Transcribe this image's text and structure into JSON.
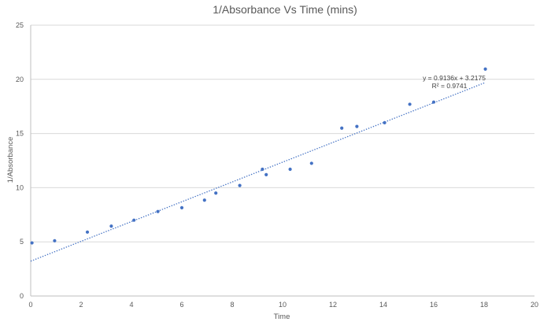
{
  "chart_data": {
    "type": "scatter",
    "title": "1/Absorbance Vs Time (mins)",
    "xlabel": "Time",
    "ylabel": "1/Absorbance",
    "xlim": [
      0,
      20
    ],
    "ylim": [
      0,
      25
    ],
    "xticks": [
      0,
      2,
      4,
      6,
      8,
      10,
      12,
      14,
      16,
      18,
      20
    ],
    "yticks": [
      0,
      5,
      10,
      15,
      20,
      25
    ],
    "grid": "horizontal",
    "legend": "none",
    "series": [
      {
        "color": "#4472c4",
        "points": [
          {
            "x": 0.05,
            "y": 4.9
          },
          {
            "x": 0.95,
            "y": 5.1
          },
          {
            "x": 2.25,
            "y": 5.9
          },
          {
            "x": 3.2,
            "y": 6.45
          },
          {
            "x": 4.1,
            "y": 7.0
          },
          {
            "x": 5.05,
            "y": 7.8
          },
          {
            "x": 6.0,
            "y": 8.15
          },
          {
            "x": 6.9,
            "y": 8.85
          },
          {
            "x": 7.35,
            "y": 9.5
          },
          {
            "x": 8.3,
            "y": 10.2
          },
          {
            "x": 9.2,
            "y": 11.7
          },
          {
            "x": 9.35,
            "y": 11.2
          },
          {
            "x": 10.3,
            "y": 11.7
          },
          {
            "x": 11.15,
            "y": 12.25
          },
          {
            "x": 12.35,
            "y": 15.5
          },
          {
            "x": 12.95,
            "y": 15.65
          },
          {
            "x": 14.05,
            "y": 16.0
          },
          {
            "x": 15.05,
            "y": 17.7
          },
          {
            "x": 16.0,
            "y": 17.9
          },
          {
            "x": 18.05,
            "y": 20.95
          }
        ]
      }
    ],
    "trendline": {
      "type": "linear",
      "slope": 0.9136,
      "intercept": 3.2175,
      "x_range": [
        0,
        18.05
      ],
      "equation": "y = 0.9136x + 3.2175",
      "r_squared": "R² = 0.9741",
      "color": "#4472c4",
      "style": "dotted"
    },
    "colors": {
      "gridline": "#d9d9d9",
      "axis": "#bfbfbf",
      "text": "#595959"
    }
  }
}
